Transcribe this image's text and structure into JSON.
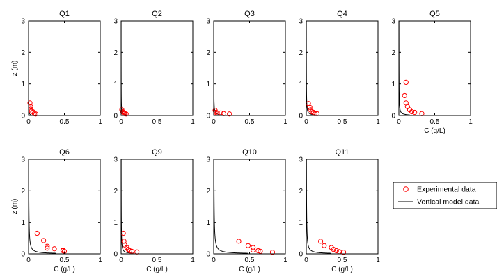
{
  "chart_data": {
    "type": "line",
    "layout": "small-multiples",
    "xlim": [
      0,
      1
    ],
    "ylim": [
      0,
      3
    ],
    "xticks": [
      0,
      0.5,
      1
    ],
    "yticks": [
      0,
      1,
      2,
      3
    ],
    "legend": {
      "placement": "right",
      "entries": [
        {
          "label": "Experimental data",
          "marker": "circle",
          "color": "#ff0000"
        },
        {
          "label": "Vertical model data",
          "marker": "line",
          "color": "#000000"
        }
      ]
    },
    "panels": [
      {
        "title": "Q1",
        "xlabel": "",
        "ylabel": "z (m)",
        "experimental": [
          [
            0.02,
            0.4
          ],
          [
            0.03,
            0.28
          ],
          [
            0.03,
            0.2
          ],
          [
            0.04,
            0.14
          ],
          [
            0.06,
            0.12
          ],
          [
            0.08,
            0.06
          ],
          [
            0.1,
            0.05
          ]
        ],
        "model": {
          "cs": 0.02,
          "cb": 0.0
        }
      },
      {
        "title": "Q2",
        "xlabel": "",
        "ylabel": "",
        "experimental": [
          [
            0.01,
            0.18
          ],
          [
            0.02,
            0.12
          ],
          [
            0.03,
            0.1
          ],
          [
            0.04,
            0.08
          ],
          [
            0.05,
            0.06
          ],
          [
            0.07,
            0.05
          ]
        ],
        "model": {
          "cs": 0.04,
          "cb": 0.0
        }
      },
      {
        "title": "Q3",
        "xlabel": "",
        "ylabel": "",
        "experimental": [
          [
            0.02,
            0.16
          ],
          [
            0.03,
            0.1
          ],
          [
            0.05,
            0.08
          ],
          [
            0.1,
            0.08
          ],
          [
            0.14,
            0.06
          ],
          [
            0.22,
            0.05
          ]
        ],
        "model": {
          "cs": 0.06,
          "cb": 0.0
        }
      },
      {
        "title": "Q4",
        "xlabel": "",
        "ylabel": "",
        "experimental": [
          [
            0.03,
            0.38
          ],
          [
            0.05,
            0.26
          ],
          [
            0.06,
            0.18
          ],
          [
            0.08,
            0.12
          ],
          [
            0.1,
            0.1
          ],
          [
            0.12,
            0.06
          ],
          [
            0.15,
            0.06
          ]
        ],
        "model": {
          "cs": 0.07,
          "cb": 0.0
        }
      },
      {
        "title": "Q5",
        "xlabel": "C (g/L)",
        "ylabel": "",
        "experimental": [
          [
            0.1,
            1.05
          ],
          [
            0.08,
            0.63
          ],
          [
            0.1,
            0.4
          ],
          [
            0.12,
            0.28
          ],
          [
            0.15,
            0.18
          ],
          [
            0.18,
            0.12
          ],
          [
            0.22,
            0.1
          ],
          [
            0.32,
            0.06
          ]
        ],
        "model": {
          "cs": 0.08,
          "cb": 0.0
        }
      },
      {
        "title": "Q6",
        "xlabel": "C (g/L)",
        "ylabel": "z (m)",
        "experimental": [
          [
            0.12,
            0.65
          ],
          [
            0.21,
            0.42
          ],
          [
            0.26,
            0.24
          ],
          [
            0.26,
            0.18
          ],
          [
            0.36,
            0.16
          ],
          [
            0.48,
            0.12
          ],
          [
            0.48,
            0.1
          ],
          [
            0.5,
            0.08
          ]
        ],
        "model": {
          "cs": 0.2,
          "cb": 0.0
        }
      },
      {
        "title": "Q9",
        "xlabel": "C (g/L)",
        "ylabel": "",
        "experimental": [
          [
            0.03,
            0.65
          ],
          [
            0.04,
            0.4
          ],
          [
            0.05,
            0.28
          ],
          [
            0.08,
            0.2
          ],
          [
            0.1,
            0.14
          ],
          [
            0.12,
            0.1
          ],
          [
            0.15,
            0.08
          ],
          [
            0.22,
            0.06
          ]
        ],
        "model": {
          "cs": 0.09,
          "cb": 0.0
        }
      },
      {
        "title": "Q10",
        "xlabel": "C (g/L)",
        "ylabel": "",
        "experimental": [
          [
            0.35,
            0.4
          ],
          [
            0.48,
            0.26
          ],
          [
            0.55,
            0.2
          ],
          [
            0.55,
            0.12
          ],
          [
            0.62,
            0.1
          ],
          [
            0.65,
            0.08
          ],
          [
            0.82,
            0.05
          ]
        ],
        "model": {
          "cs": 0.25,
          "cb": 0.0
        }
      },
      {
        "title": "Q11",
        "xlabel": "C (g/L)",
        "ylabel": "",
        "experimental": [
          [
            0.2,
            0.4
          ],
          [
            0.25,
            0.26
          ],
          [
            0.35,
            0.2
          ],
          [
            0.38,
            0.14
          ],
          [
            0.42,
            0.1
          ],
          [
            0.46,
            0.07
          ],
          [
            0.52,
            0.05
          ]
        ],
        "model": {
          "cs": 0.18,
          "cb": 0.0
        }
      }
    ]
  }
}
